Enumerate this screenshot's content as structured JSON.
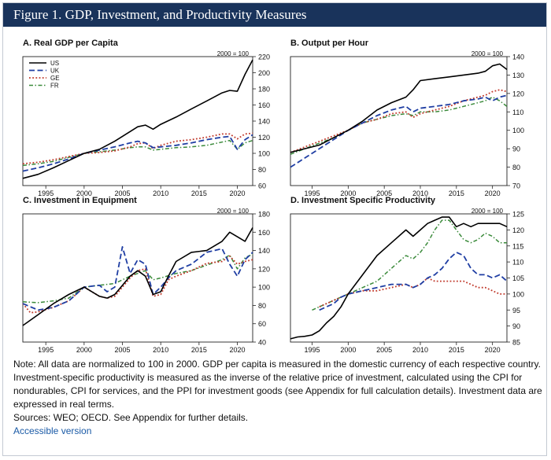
{
  "figure": {
    "title": "Figure 1. GDP, Investment, and Productivity Measures",
    "note": "Note: All data are normalized to 100 in 2000. GDP per capita is measured in the domestic currency of each respective country. Investment-specific productivity is measured as the inverse of the relative price of investment, calculated using the CPI for nondurables, CPI for services, and the PPI for investment goods (see Appendix for full calculation details). Investment data are expressed in real terms.",
    "sources": "Sources: WEO; OECD. See Appendix for further details.",
    "accessible_link": "Accessible version"
  },
  "colors": {
    "US": "#000000",
    "UK": "#1f3ea3",
    "GE": "#c0392b",
    "FR": "#3a8a3a"
  },
  "chart_data": [
    {
      "id": "A",
      "type": "line",
      "title": "A. Real GDP per Capita",
      "index_label": "2000 = 100",
      "legend_position": "top-left",
      "xlim": [
        1992,
        2022
      ],
      "x_ticks": [
        1995,
        2000,
        2005,
        2010,
        2015,
        2020
      ],
      "ylim": [
        60,
        220
      ],
      "y_ticks": [
        60,
        80,
        100,
        120,
        140,
        160,
        180,
        200,
        220
      ],
      "series": [
        {
          "name": "US",
          "x": [
            1992,
            1994,
            1996,
            1998,
            2000,
            2002,
            2004,
            2006,
            2007,
            2008,
            2009,
            2010,
            2012,
            2014,
            2016,
            2018,
            2019,
            2020,
            2021,
            2022
          ],
          "values": [
            69,
            74,
            82,
            91,
            100,
            105,
            115,
            127,
            133,
            135,
            130,
            136,
            145,
            155,
            165,
            175,
            178,
            177,
            198,
            216
          ]
        },
        {
          "name": "UK",
          "x": [
            1992,
            1994,
            1996,
            1998,
            2000,
            2002,
            2004,
            2006,
            2007,
            2008,
            2009,
            2010,
            2012,
            2014,
            2016,
            2018,
            2019,
            2020,
            2021,
            2022
          ],
          "values": [
            78,
            82,
            87,
            93,
            100,
            104,
            108,
            113,
            115,
            113,
            107,
            108,
            110,
            113,
            117,
            120,
            121,
            105,
            117,
            123
          ]
        },
        {
          "name": "GE",
          "x": [
            1992,
            1994,
            1996,
            1998,
            2000,
            2002,
            2004,
            2006,
            2007,
            2008,
            2009,
            2010,
            2012,
            2014,
            2016,
            2018,
            2019,
            2020,
            2021,
            2022
          ],
          "values": [
            87,
            89,
            92,
            96,
            100,
            101,
            103,
            108,
            112,
            113,
            106,
            110,
            115,
            117,
            120,
            124,
            124,
            118,
            124,
            125
          ]
        },
        {
          "name": "FR",
          "x": [
            1992,
            1994,
            1996,
            1998,
            2000,
            2002,
            2004,
            2006,
            2007,
            2008,
            2009,
            2010,
            2012,
            2014,
            2016,
            2018,
            2019,
            2020,
            2021,
            2022
          ],
          "values": [
            85,
            87,
            90,
            95,
            100,
            102,
            104,
            107,
            108,
            108,
            104,
            105,
            107,
            108,
            110,
            114,
            116,
            105,
            113,
            116
          ]
        }
      ]
    },
    {
      "id": "B",
      "type": "line",
      "title": "B. Output per Hour",
      "index_label": "2000 = 100",
      "legend_position": "none",
      "xlim": [
        1992,
        2022
      ],
      "x_ticks": [
        1995,
        2000,
        2005,
        2010,
        2015,
        2020
      ],
      "ylim": [
        70,
        140
      ],
      "y_ticks": [
        70,
        80,
        90,
        100,
        110,
        120,
        130,
        140
      ],
      "series": [
        {
          "name": "US",
          "x": [
            1992,
            1994,
            1996,
            1998,
            2000,
            2002,
            2004,
            2006,
            2008,
            2009,
            2010,
            2012,
            2014,
            2016,
            2018,
            2019,
            2020,
            2021,
            2022
          ],
          "values": [
            88,
            90,
            92,
            96,
            100,
            105,
            111,
            115,
            118,
            122,
            127,
            128,
            129,
            130,
            131,
            132,
            135,
            136,
            133
          ]
        },
        {
          "name": "UK",
          "x": [
            1992,
            1994,
            1996,
            1998,
            2000,
            2002,
            2004,
            2006,
            2008,
            2009,
            2010,
            2012,
            2014,
            2016,
            2018,
            2019,
            2020,
            2021,
            2022
          ],
          "values": [
            80,
            85,
            90,
            95,
            100,
            104,
            108,
            111,
            113,
            110,
            112,
            113,
            114,
            116,
            117,
            118,
            116,
            118,
            119
          ]
        },
        {
          "name": "GE",
          "x": [
            1992,
            1994,
            1996,
            1998,
            2000,
            2002,
            2004,
            2006,
            2008,
            2009,
            2010,
            2012,
            2014,
            2016,
            2018,
            2019,
            2020,
            2021,
            2022
          ],
          "values": [
            88,
            91,
            94,
            97,
            100,
            104,
            106,
            109,
            110,
            107,
            109,
            111,
            113,
            116,
            118,
            119,
            121,
            122,
            121
          ]
        },
        {
          "name": "FR",
          "x": [
            1992,
            1994,
            1996,
            1998,
            2000,
            2002,
            2004,
            2006,
            2008,
            2009,
            2010,
            2012,
            2014,
            2016,
            2018,
            2019,
            2020,
            2021,
            2022
          ],
          "values": [
            87,
            90,
            93,
            96,
            100,
            104,
            106,
            108,
            109,
            108,
            110,
            110,
            111,
            113,
            115,
            116,
            118,
            116,
            113
          ]
        }
      ]
    },
    {
      "id": "C",
      "type": "line",
      "title": "C. Investment in Equipment",
      "index_label": "2000 = 100",
      "legend_position": "none",
      "xlim": [
        1992,
        2022
      ],
      "x_ticks": [
        1995,
        2000,
        2005,
        2010,
        2015,
        2020
      ],
      "ylim": [
        40,
        180
      ],
      "y_ticks": [
        40,
        60,
        80,
        100,
        120,
        140,
        160,
        180
      ],
      "series": [
        {
          "name": "US",
          "x": [
            1992,
            1994,
            1996,
            1998,
            2000,
            2002,
            2003,
            2004,
            2006,
            2007,
            2008,
            2009,
            2010,
            2011,
            2012,
            2014,
            2016,
            2018,
            2019,
            2020,
            2021,
            2022
          ],
          "values": [
            58,
            70,
            82,
            92,
            100,
            90,
            88,
            92,
            112,
            118,
            112,
            92,
            95,
            112,
            128,
            138,
            140,
            150,
            160,
            155,
            150,
            165
          ]
        },
        {
          "name": "UK",
          "x": [
            1992,
            1994,
            1996,
            1998,
            2000,
            2002,
            2003,
            2004,
            2005,
            2006,
            2007,
            2008,
            2009,
            2010,
            2011,
            2012,
            2014,
            2016,
            2018,
            2019,
            2020,
            2021,
            2022
          ],
          "values": [
            82,
            75,
            78,
            85,
            100,
            102,
            95,
            100,
            144,
            115,
            130,
            125,
            92,
            100,
            110,
            118,
            125,
            138,
            142,
            125,
            112,
            130,
            138
          ]
        },
        {
          "name": "GE",
          "x": [
            1992,
            1993,
            1994,
            1996,
            1998,
            2000,
            2002,
            2003,
            2004,
            2006,
            2007,
            2008,
            2009,
            2010,
            2011,
            2012,
            2014,
            2016,
            2018,
            2019,
            2020,
            2021,
            2022
          ],
          "values": [
            82,
            72,
            73,
            78,
            85,
            100,
            90,
            88,
            90,
            110,
            118,
            120,
            90,
            92,
            108,
            112,
            118,
            126,
            128,
            134,
            125,
            128,
            130
          ]
        },
        {
          "name": "FR",
          "x": [
            1992,
            1994,
            1996,
            1998,
            2000,
            2002,
            2004,
            2006,
            2008,
            2009,
            2010,
            2012,
            2014,
            2016,
            2018,
            2019,
            2020,
            2021,
            2022
          ],
          "values": [
            84,
            83,
            85,
            88,
            100,
            102,
            104,
            112,
            118,
            108,
            110,
            115,
            118,
            124,
            130,
            135,
            120,
            132,
            136
          ]
        }
      ]
    },
    {
      "id": "D",
      "type": "line",
      "title": "D. Investment Specific Productivity",
      "index_label": "2000 = 100",
      "legend_position": "none",
      "xlim": [
        1992,
        2022
      ],
      "x_ticks": [
        1995,
        2000,
        2005,
        2010,
        2015,
        2020
      ],
      "ylim": [
        85,
        125
      ],
      "y_ticks": [
        85,
        90,
        95,
        100,
        105,
        110,
        115,
        120,
        125
      ],
      "series": [
        {
          "name": "US",
          "x": [
            1992,
            1993,
            1994,
            1995,
            1996,
            1997,
            1998,
            1999,
            2000,
            2002,
            2004,
            2006,
            2008,
            2009,
            2010,
            2011,
            2012,
            2013,
            2014,
            2015,
            2016,
            2017,
            2018,
            2019,
            2020,
            2021,
            2022
          ],
          "values": [
            86,
            86.6,
            86.8,
            87.2,
            88.5,
            91,
            93,
            96,
            100,
            106,
            112,
            116,
            120,
            118,
            120,
            122,
            123,
            124,
            124,
            121,
            122,
            121,
            122,
            122,
            122,
            122,
            121
          ]
        },
        {
          "name": "UK",
          "x": [
            1996,
            1997,
            1998,
            1999,
            2000,
            2002,
            2004,
            2006,
            2008,
            2009,
            2010,
            2011,
            2012,
            2013,
            2014,
            2015,
            2016,
            2017,
            2018,
            2019,
            2020,
            2021,
            2022
          ],
          "values": [
            95,
            96,
            97,
            99,
            100,
            101,
            102,
            103,
            103,
            102,
            103,
            105,
            106,
            108,
            111,
            113,
            112,
            108,
            106,
            106,
            105,
            106,
            104
          ]
        },
        {
          "name": "GE",
          "x": [
            1996,
            1997,
            1998,
            1999,
            2000,
            2002,
            2004,
            2006,
            2008,
            2009,
            2010,
            2011,
            2012,
            2014,
            2016,
            2017,
            2018,
            2019,
            2020,
            2021,
            2022
          ],
          "values": [
            96,
            97,
            98,
            99,
            100,
            101,
            101,
            102,
            103,
            102,
            103,
            105,
            104,
            104,
            104,
            103,
            102,
            102,
            101,
            100,
            100
          ]
        },
        {
          "name": "FR",
          "x": [
            1995,
            1996,
            1997,
            1998,
            1999,
            2000,
            2002,
            2004,
            2006,
            2008,
            2009,
            2010,
            2011,
            2012,
            2013,
            2014,
            2015,
            2016,
            2017,
            2018,
            2019,
            2020,
            2021,
            2022
          ],
          "values": [
            95,
            96,
            97,
            98,
            99,
            100,
            102,
            104,
            108,
            112,
            111,
            113,
            116,
            120,
            123,
            123,
            120,
            117,
            116,
            117,
            119,
            118,
            116,
            116
          ]
        }
      ]
    }
  ]
}
